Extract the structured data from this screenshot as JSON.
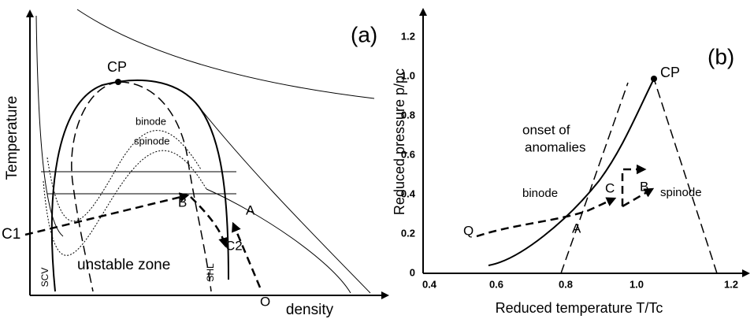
{
  "panel_a": {
    "label": "(a)",
    "y_axis_title": "Temperature",
    "x_axis_title": "density",
    "annotations": [
      "CP",
      "binode",
      "spinode",
      "C1",
      "unstable zone",
      "SCV",
      "SHL",
      "C2",
      "A",
      "B",
      "O"
    ]
  },
  "panel_b": {
    "label": "(b)",
    "y_axis_title": "Reduced pressure p/pc",
    "x_axis_title": "Reduced temperature T/Tc",
    "y_ticks": [
      "0",
      "0.2",
      "0.4",
      "0.6",
      "0.8",
      "1.0",
      "1.2"
    ],
    "x_ticks": [
      "0.4",
      "0.6",
      "0.8",
      "1.0",
      "1.2"
    ],
    "annotations": [
      "CP",
      "onset of",
      "anomalies",
      "binode",
      "C",
      "B",
      "spinode",
      "A",
      "Q"
    ]
  }
}
